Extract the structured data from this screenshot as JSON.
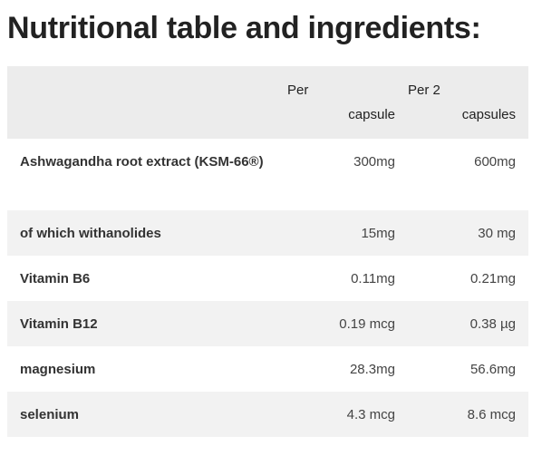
{
  "title": "Nutritional table and ingredients:",
  "table": {
    "header": [
      [],
      [
        "Per",
        "capsule"
      ],
      [
        "Per 2",
        "capsules"
      ]
    ],
    "rows": [
      [
        "Ashwagandha root extract (KSM-66®)",
        "300mg",
        "600mg"
      ],
      [
        "of which withanolides",
        "15mg",
        "30 mg"
      ],
      [
        "Vitamin B6",
        "0.11mg",
        "0.21mg"
      ],
      [
        "Vitamin B12",
        "0.19 mcg",
        "0.38 µg"
      ],
      [
        "magnesium",
        "28.3mg",
        "56.6mg"
      ],
      [
        "selenium",
        "4.3 mcg",
        "8.6 mcg"
      ]
    ]
  }
}
